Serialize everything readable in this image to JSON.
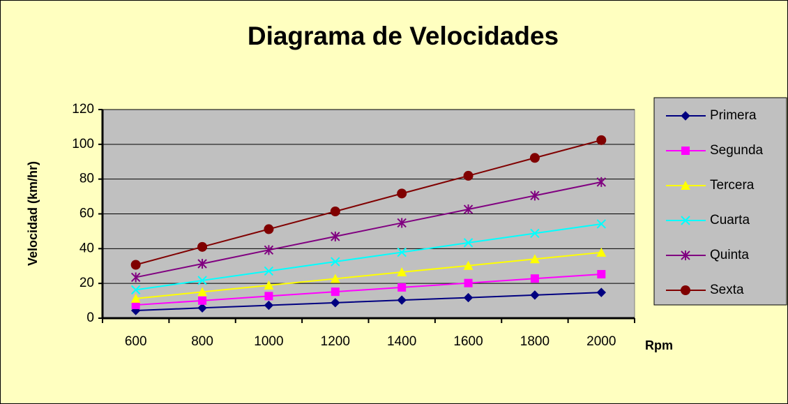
{
  "chart_data": {
    "type": "line",
    "title": "Diagrama de Velocidades",
    "x_label": "Rpm",
    "y_label": "Velocidad (km/hr)",
    "categories": [
      "600",
      "800",
      "1000",
      "1200",
      "1400",
      "1600",
      "1800",
      "2000"
    ],
    "ylim": [
      0,
      120
    ],
    "yticks": [
      0,
      20,
      40,
      60,
      80,
      100,
      120
    ],
    "grid": true,
    "legend": "right",
    "series": [
      {
        "name": "Primera",
        "color": "#000080",
        "marker": "diamond",
        "values": [
          4.4,
          5.9,
          7.4,
          8.9,
          10.4,
          11.8,
          13.3,
          14.8
        ]
      },
      {
        "name": "Segunda",
        "color": "#ff00ff",
        "marker": "square",
        "values": [
          7.6,
          10.1,
          12.7,
          15.2,
          17.7,
          20.2,
          22.8,
          25.3
        ]
      },
      {
        "name": "Tercera",
        "color": "#ffff00",
        "marker": "triangle",
        "values": [
          11.3,
          15.1,
          18.9,
          22.7,
          26.5,
          30.2,
          34.0,
          37.8
        ]
      },
      {
        "name": "Cuarta",
        "color": "#00ffff",
        "marker": "x",
        "values": [
          16.3,
          21.7,
          27.1,
          32.5,
          37.9,
          43.4,
          48.8,
          54.2
        ]
      },
      {
        "name": "Quinta",
        "color": "#800080",
        "marker": "star",
        "values": [
          23.5,
          31.3,
          39.2,
          47.0,
          54.8,
          62.6,
          70.5,
          78.3
        ]
      },
      {
        "name": "Sexta",
        "color": "#800000",
        "marker": "circle",
        "values": [
          30.7,
          41.0,
          51.2,
          61.4,
          71.7,
          81.9,
          92.2,
          102.4
        ]
      }
    ]
  }
}
